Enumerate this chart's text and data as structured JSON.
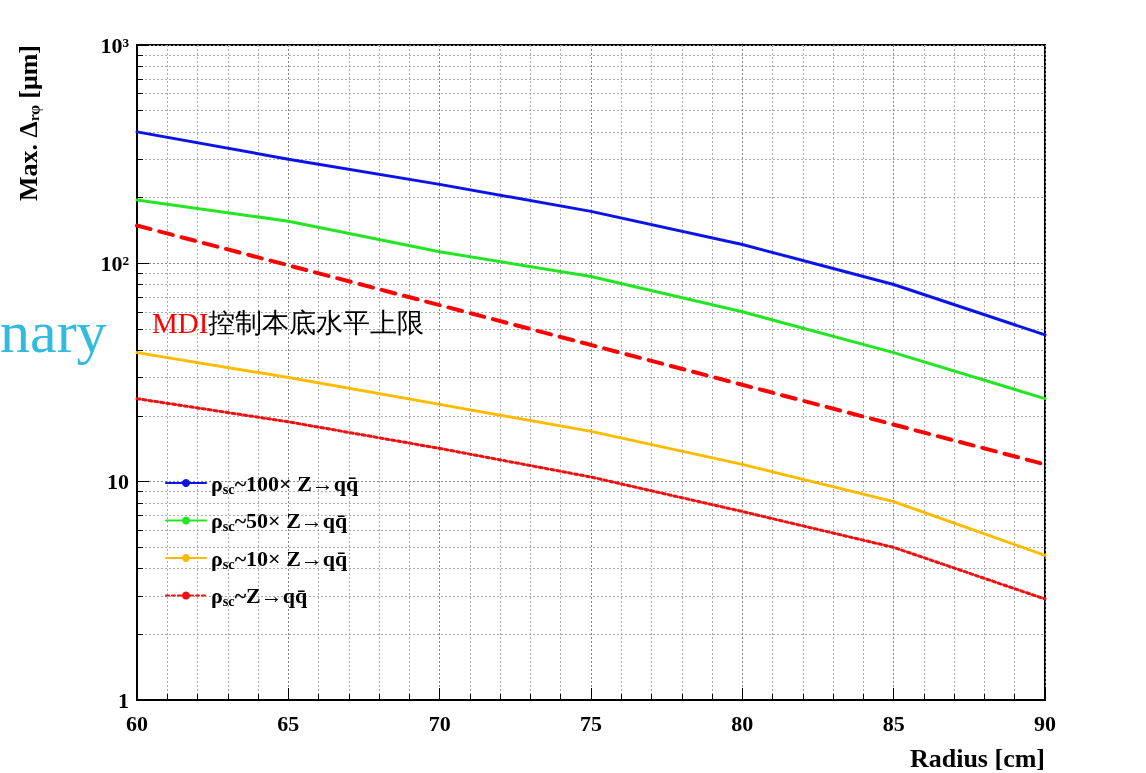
{
  "chart_data": {
    "type": "line",
    "xlabel": "Radius [cm]",
    "ylabel": "Max. Δᵣᵩ [μm]",
    "x": [
      60,
      65,
      70,
      75,
      80,
      85,
      90
    ],
    "series": [
      {
        "name": "ρ$_{sc}$~100× Z→qq̄",
        "color": "#0a14e6",
        "values": [
          400,
          300,
          230,
          173,
          122,
          80,
          47
        ]
      },
      {
        "name": "ρ$_{sc}$~50× Z→qq̄",
        "color": "#22e622",
        "values": [
          195,
          156,
          113,
          87,
          60,
          39,
          24
        ]
      },
      {
        "name": "ρ$_{sc}$~10× Z→qq̄",
        "color": "#ffbb00",
        "values": [
          39,
          30,
          22.6,
          17,
          12,
          8.1,
          4.6
        ]
      },
      {
        "name": "ρ$_{sc}$~Z→qq̄",
        "color": "#ee1111",
        "line_style": "dotted",
        "values": [
          24,
          18.8,
          14.2,
          10.5,
          7.3,
          5,
          2.9
        ]
      },
      {
        "color": "#ff0000",
        "line_style": "dashed",
        "x": [
          60,
          90
        ],
        "values": [
          149,
          12
        ]
      }
    ],
    "xlim": [
      60,
      90
    ],
    "xticks": [
      60,
      65,
      70,
      75,
      80,
      85,
      90
    ],
    "ylim": [
      1,
      1000
    ],
    "yticks": [
      1,
      10,
      {
        "value": 100,
        "label": "10²"
      },
      {
        "value": 1000,
        "label": "10³"
      }
    ],
    "log": "y",
    "grid": true,
    "legend": "bottom left",
    "marker": "none",
    "line_style": "solid",
    "annotations": [
      "MDI控制本底水平上限",
      "nary"
    ]
  }
}
